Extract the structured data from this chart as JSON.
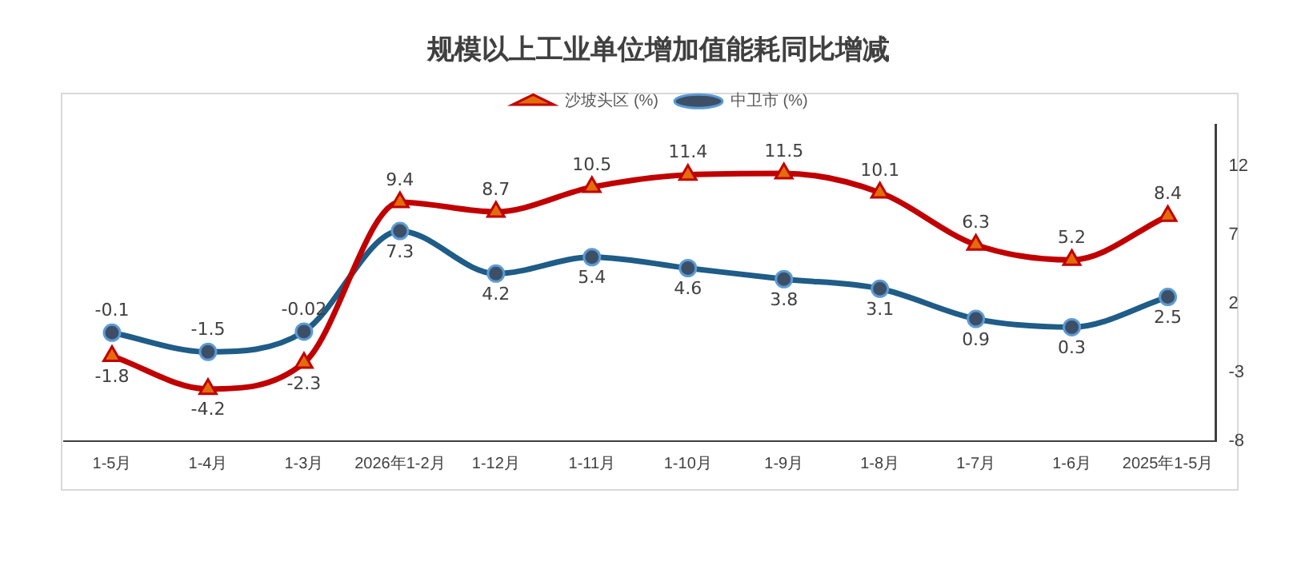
{
  "chart_data": {
    "type": "line",
    "title": "规模以上工业单位增加值能耗同比增减",
    "categories": [
      "1-5月",
      "1-4月",
      "1-3月",
      "2026年1-2月",
      "1-12月",
      "1-11月",
      "1-10月",
      "1-9月",
      "1-8月",
      "1-7月",
      "1-6月",
      "2025年1-5月"
    ],
    "series": [
      {
        "name": "沙坡头区 (%)",
        "color": "#c00000",
        "marker": "triangle",
        "values": [
          -1.8,
          -4.2,
          -2.3,
          9.4,
          8.7,
          10.5,
          11.4,
          11.5,
          10.1,
          6.3,
          5.2,
          8.4
        ]
      },
      {
        "name": "中卫市 (%)",
        "color": "#1f5c87",
        "marker": "circle",
        "values": [
          -0.1,
          -1.5,
          -0.02,
          7.3,
          4.2,
          5.4,
          4.6,
          3.8,
          3.1,
          0.9,
          0.3,
          2.5
        ]
      }
    ],
    "ylim": [
      -8,
      15
    ],
    "yticks": [
      -8,
      -3,
      2,
      7,
      12
    ],
    "grid": false,
    "legend": "top",
    "data_labels": true
  }
}
